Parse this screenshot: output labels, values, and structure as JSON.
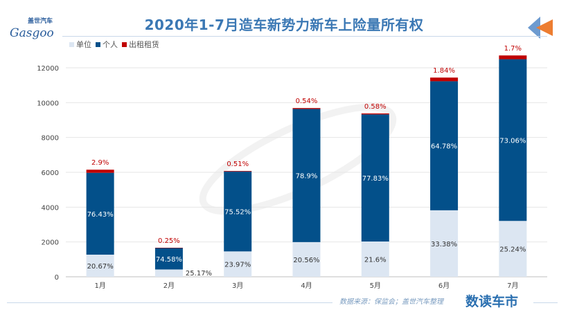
{
  "title": "2020年1-7月造车新势力新车上险量所有权",
  "logo": {
    "cn": "盖世汽车",
    "en": "Gasgoo"
  },
  "watermark": "盖世汽车 Gasgoo",
  "source": "数据来源：保监会；盖世汽车整理",
  "brand": "数读车市",
  "colors": {
    "unit": "#dce6f2",
    "personal": "#03508a",
    "rental": "#c00000",
    "title": "#3b78b4",
    "label_red": "#c00000"
  },
  "chart_data": {
    "type": "bar",
    "stacked": true,
    "title": "2020年1-7月造车新势力新车上险量所有权",
    "categories": [
      "1月",
      "2月",
      "3月",
      "4月",
      "5月",
      "6月",
      "7月"
    ],
    "totals": [
      6150,
      1669,
      6080,
      9690,
      9380,
      11440,
      12710
    ],
    "series": [
      {
        "name": "单位",
        "color": "#dce6f2",
        "percent_labels": [
          "20.67%",
          "25.17%",
          "23.97%",
          "20.56%",
          "21.6%",
          "33.38%",
          "25.24%"
        ],
        "percents": [
          20.67,
          25.17,
          23.97,
          20.56,
          21.6,
          33.38,
          25.24
        ]
      },
      {
        "name": "个人",
        "color": "#03508a",
        "percent_labels": [
          "76.43%",
          "74.58%",
          "75.52%",
          "78.9%",
          "77.83%",
          "64.78%",
          "73.06%"
        ],
        "percents": [
          76.43,
          74.58,
          75.52,
          78.9,
          77.83,
          64.78,
          73.06
        ]
      },
      {
        "name": "出租租赁",
        "color": "#c00000",
        "percent_labels": [
          "2.9%",
          "0.25%",
          "0.51%",
          "0.54%",
          "0.58%",
          "1.84%",
          "1.7%"
        ],
        "percents": [
          2.9,
          0.25,
          0.51,
          0.54,
          0.58,
          1.84,
          1.7
        ]
      }
    ],
    "yticks": [
      "0",
      "2000",
      "4000",
      "6000",
      "8000",
      "10000",
      "12000"
    ],
    "ylim": [
      0,
      12000
    ],
    "grid": true,
    "legend_position": "top-left"
  }
}
